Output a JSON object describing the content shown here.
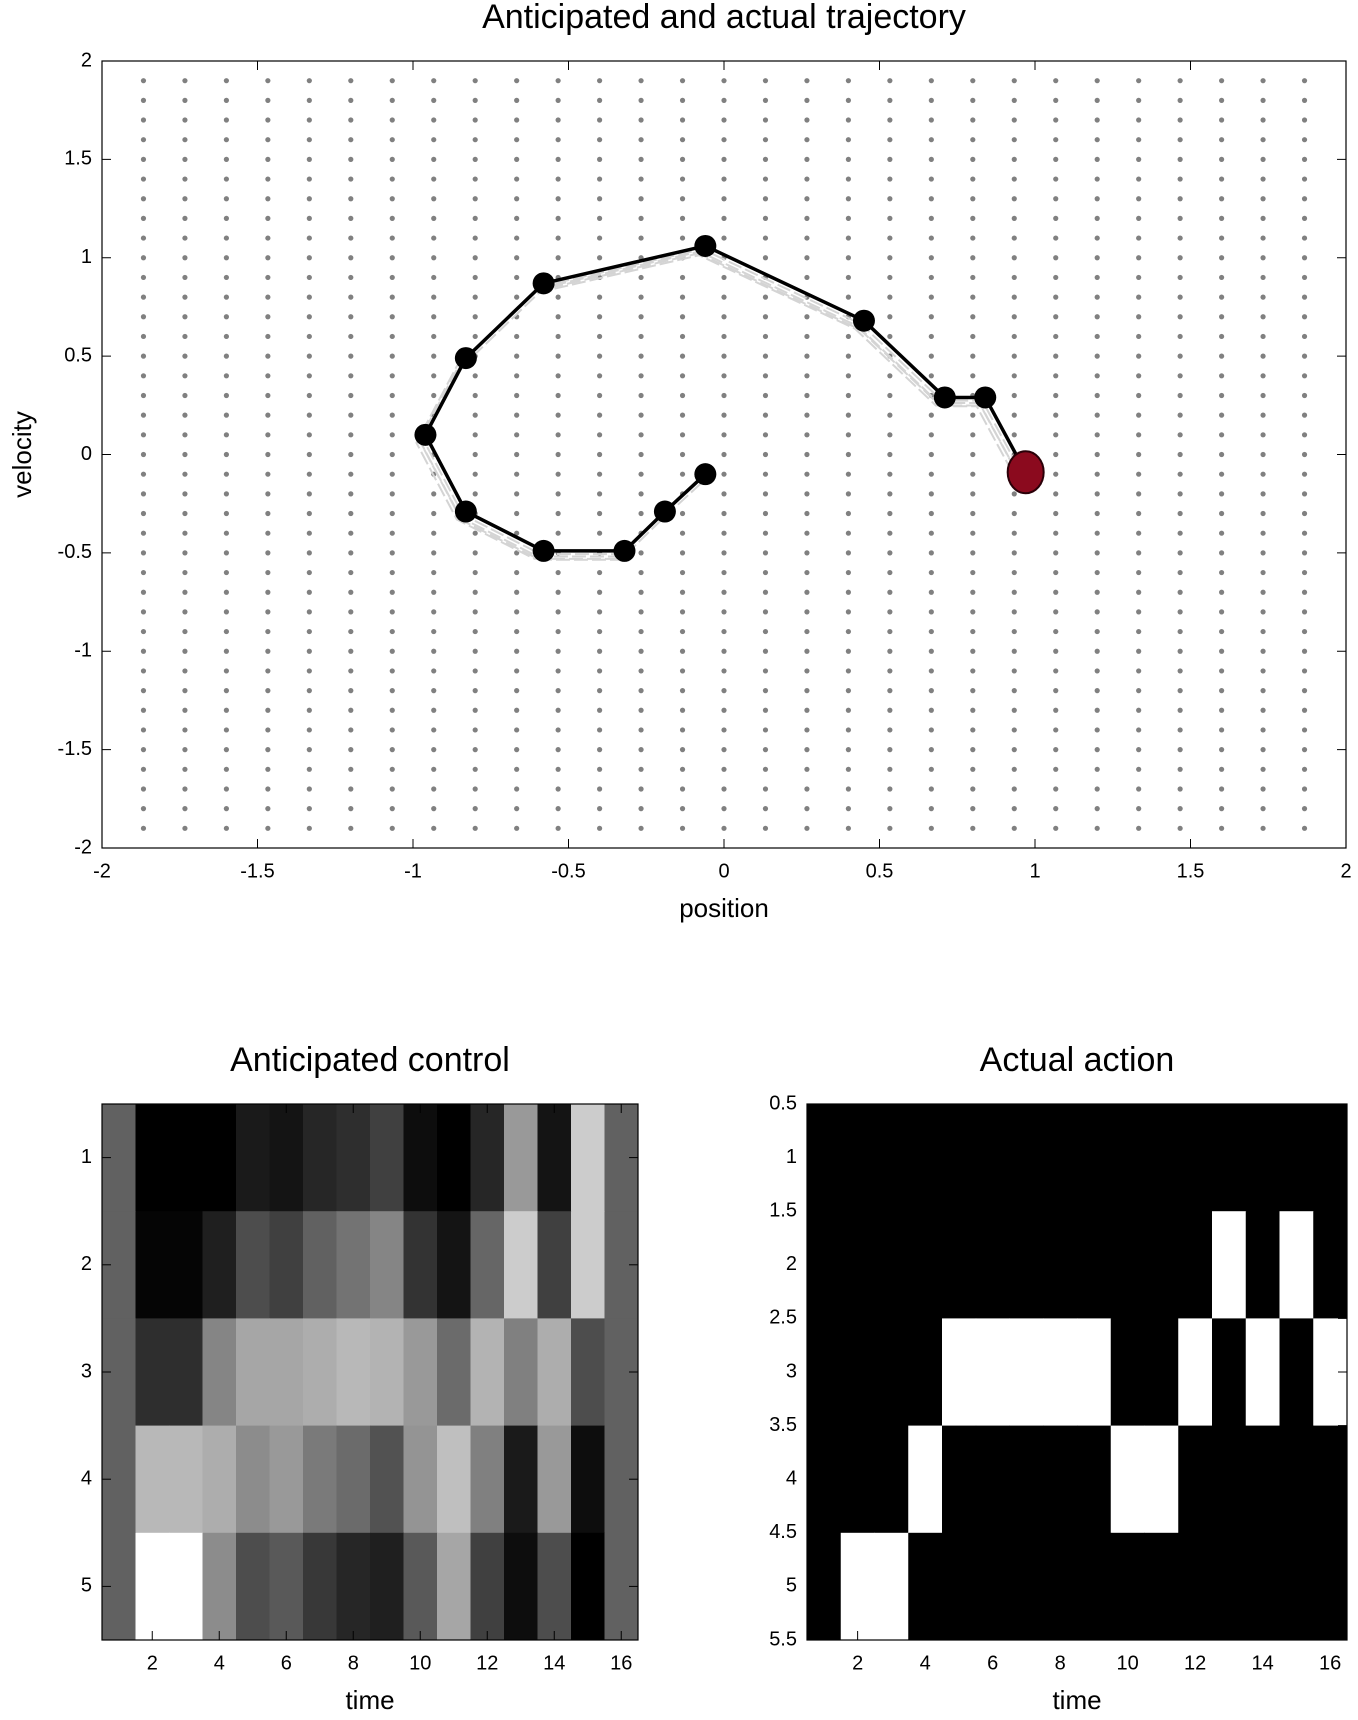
{
  "chart_data": [
    {
      "type": "line",
      "title": "Anticipated and actual trajectory",
      "x_label": "position",
      "y_label": "velocity",
      "series": [
        {
          "color": "#000000",
          "x": [
            -0.06,
            -0.19,
            -0.32,
            -0.58,
            -0.83,
            -0.96,
            -0.83,
            -0.58,
            -0.06,
            0.45,
            0.71,
            0.84,
            0.97
          ],
          "values": [
            -0.1,
            -0.29,
            -0.49,
            -0.49,
            -0.29,
            0.1,
            0.49,
            0.87,
            1.06,
            0.68,
            0.29,
            0.29,
            -0.09
          ]
        },
        {
          "color": "#8b0a1e",
          "x": [
            0.97
          ],
          "values": [
            -0.09
          ]
        }
      ],
      "xlim": [
        -2,
        2
      ],
      "xticks": [
        -2,
        -1.5,
        -1,
        -0.5,
        0,
        0.5,
        1,
        1.5,
        2
      ],
      "ylim": [
        -2,
        2
      ],
      "yticks": [
        -2,
        -1.5,
        -1,
        -0.5,
        0,
        0.5,
        1,
        1.5,
        2
      ]
    },
    {
      "type": "heatmap",
      "title": "Anticipated control",
      "x_label": "time",
      "colormap": "gray",
      "clim": [
        0,
        1
      ],
      "values": [
        [
          0.38,
          0.0,
          0.0,
          0.0,
          0.1,
          0.08,
          0.15,
          0.18,
          0.25,
          0.05,
          0.0,
          0.15,
          0.6,
          0.08,
          0.8,
          0.38
        ],
        [
          0.38,
          0.02,
          0.02,
          0.12,
          0.3,
          0.25,
          0.38,
          0.45,
          0.52,
          0.2,
          0.08,
          0.4,
          0.8,
          0.25,
          0.8,
          0.38
        ],
        [
          0.38,
          0.18,
          0.18,
          0.52,
          0.65,
          0.65,
          0.68,
          0.72,
          0.7,
          0.6,
          0.42,
          0.7,
          0.5,
          0.68,
          0.3,
          0.38
        ],
        [
          0.38,
          0.72,
          0.72,
          0.68,
          0.55,
          0.6,
          0.48,
          0.42,
          0.32,
          0.58,
          0.75,
          0.5,
          0.1,
          0.6,
          0.05,
          0.38
        ],
        [
          0.38,
          1.0,
          1.0,
          0.55,
          0.3,
          0.35,
          0.22,
          0.15,
          0.12,
          0.35,
          0.65,
          0.25,
          0.05,
          0.3,
          0.0,
          0.38
        ]
      ],
      "xlim": [
        0.5,
        16.5
      ],
      "xticks": [
        2,
        4,
        6,
        8,
        10,
        12,
        14,
        16
      ],
      "ylim": [
        0.5,
        5.5
      ],
      "yticks": [
        1,
        2,
        3,
        4,
        5
      ],
      "y_reversed": true
    },
    {
      "type": "heatmap",
      "title": "Actual action",
      "x_label": "time",
      "colormap": "gray",
      "clim": [
        0,
        1
      ],
      "values": [
        [
          0,
          0,
          0,
          0,
          0,
          0,
          0,
          0,
          0,
          0,
          0,
          0,
          0,
          0,
          0,
          0
        ],
        [
          0,
          0,
          0,
          0,
          0,
          0,
          0,
          0,
          0,
          0,
          0,
          0,
          1,
          0,
          1,
          0
        ],
        [
          0,
          0,
          0,
          0,
          1,
          1,
          1,
          1,
          1,
          0,
          0,
          1,
          0,
          1,
          0,
          1
        ],
        [
          0,
          0,
          0,
          1,
          0,
          0,
          0,
          0,
          0,
          1,
          1,
          0,
          0,
          0,
          0,
          0
        ],
        [
          0,
          1,
          1,
          0,
          0,
          0,
          0,
          0,
          0,
          0,
          0,
          0,
          0,
          0,
          0,
          0
        ]
      ],
      "xlim": [
        0.5,
        16.5
      ],
      "xticks": [
        2,
        4,
        6,
        8,
        10,
        12,
        14,
        16
      ],
      "ylim": [
        0.5,
        5.5
      ],
      "yticks": [
        0.5,
        1,
        1.5,
        2,
        2.5,
        3,
        3.5,
        4,
        4.5,
        5,
        5.5
      ],
      "y_reversed": true
    }
  ]
}
